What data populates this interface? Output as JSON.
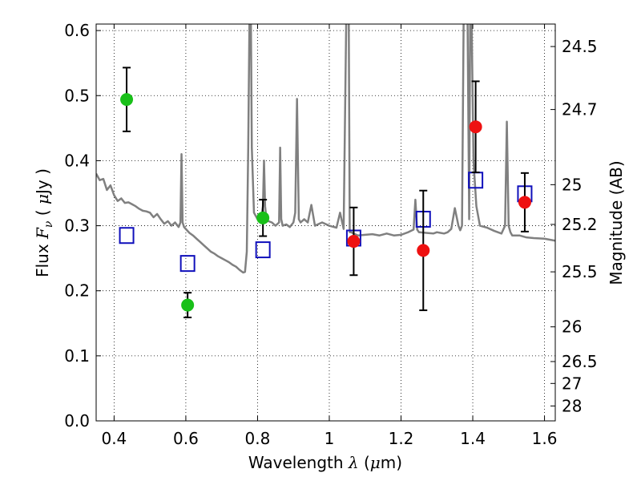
{
  "chart_data": {
    "type": "scatter",
    "xlabel": "Wavelength",
    "xlabel_math": "λ",
    "xlabel_unit_open": "(",
    "xlabel_unit_mu": "μ",
    "xlabel_unit_rest": "m)",
    "ylabel": "Flux",
    "ylabel_math": "F",
    "ylabel_math_sub": "ν",
    "ylabel_unit_open": "(",
    "ylabel_unit_mu": "μ",
    "ylabel_unit_rest": "Jy )",
    "y2label": "Magnitude (AB)",
    "xlim": [
      0.35,
      1.63
    ],
    "ylim": [
      0.0,
      0.61
    ],
    "grid": true,
    "x_ticks": [
      0.4,
      0.6,
      0.8,
      1.0,
      1.2,
      1.4,
      1.6
    ],
    "x_tick_labels": [
      "0.4",
      "0.6",
      "0.8",
      "1",
      "1.2",
      "1.4",
      "1.6"
    ],
    "y_ticks": [
      0.0,
      0.1,
      0.2,
      0.3,
      0.4,
      0.5,
      0.6
    ],
    "y_tick_labels": [
      "0.0",
      "0.1",
      "0.2",
      "0.3",
      "0.4",
      "0.5",
      "0.6"
    ],
    "y2_ticks": [
      24.5,
      24.7,
      25,
      25.2,
      25.5,
      26,
      26.5,
      27,
      28
    ],
    "y2_tick_labels": [
      "24.5",
      "24.7",
      "25",
      "25.2",
      "25.5",
      "26",
      "26.5",
      "27",
      "28"
    ],
    "colors": {
      "model": "#808080",
      "green": "#19c019",
      "red": "#ee1111",
      "blue": "#1010bb",
      "error": "#000000"
    },
    "model_spectrum": {
      "x": [
        0.35,
        0.36,
        0.37,
        0.38,
        0.39,
        0.4,
        0.41,
        0.42,
        0.43,
        0.44,
        0.45,
        0.46,
        0.47,
        0.48,
        0.49,
        0.5,
        0.51,
        0.52,
        0.53,
        0.54,
        0.55,
        0.56,
        0.57,
        0.58,
        0.585,
        0.588,
        0.591,
        0.595,
        0.6,
        0.61,
        0.62,
        0.63,
        0.64,
        0.65,
        0.66,
        0.67,
        0.68,
        0.69,
        0.7,
        0.71,
        0.72,
        0.73,
        0.74,
        0.75,
        0.76,
        0.765,
        0.77,
        0.774,
        0.778,
        0.781,
        0.784,
        0.79,
        0.8,
        0.81,
        0.815,
        0.818,
        0.821,
        0.825,
        0.83,
        0.84,
        0.85,
        0.86,
        0.863,
        0.866,
        0.87,
        0.88,
        0.89,
        0.9,
        0.905,
        0.91,
        0.912,
        0.915,
        0.92,
        0.93,
        0.94,
        0.95,
        0.96,
        0.98,
        1.0,
        1.02,
        1.03,
        1.04,
        1.048,
        1.051,
        1.054,
        1.057,
        1.06,
        1.08,
        1.1,
        1.12,
        1.14,
        1.16,
        1.18,
        1.2,
        1.22,
        1.235,
        1.24,
        1.245,
        1.25,
        1.27,
        1.29,
        1.3,
        1.31,
        1.32,
        1.33,
        1.34,
        1.35,
        1.36,
        1.365,
        1.37,
        1.375,
        1.385,
        1.39,
        1.393,
        1.396,
        1.402,
        1.41,
        1.42,
        1.44,
        1.46,
        1.48,
        1.49,
        1.495,
        1.5,
        1.505,
        1.51,
        1.53,
        1.55,
        1.57,
        1.6,
        1.63
      ],
      "y": [
        0.38,
        0.37,
        0.372,
        0.355,
        0.362,
        0.347,
        0.338,
        0.342,
        0.335,
        0.336,
        0.333,
        0.33,
        0.326,
        0.323,
        0.322,
        0.32,
        0.313,
        0.318,
        0.31,
        0.303,
        0.307,
        0.3,
        0.305,
        0.298,
        0.305,
        0.41,
        0.305,
        0.298,
        0.295,
        0.289,
        0.285,
        0.28,
        0.275,
        0.27,
        0.265,
        0.26,
        0.257,
        0.253,
        0.25,
        0.247,
        0.244,
        0.24,
        0.237,
        0.232,
        0.228,
        0.229,
        0.26,
        0.42,
        0.65,
        0.65,
        0.42,
        0.32,
        0.31,
        0.312,
        0.33,
        0.4,
        0.33,
        0.31,
        0.307,
        0.305,
        0.3,
        0.305,
        0.42,
        0.31,
        0.3,
        0.302,
        0.298,
        0.305,
        0.32,
        0.495,
        0.42,
        0.31,
        0.305,
        0.31,
        0.305,
        0.332,
        0.3,
        0.305,
        0.3,
        0.297,
        0.32,
        0.295,
        0.65,
        0.65,
        0.65,
        0.29,
        0.29,
        0.285,
        0.286,
        0.287,
        0.285,
        0.288,
        0.285,
        0.286,
        0.29,
        0.294,
        0.34,
        0.294,
        0.29,
        0.289,
        0.288,
        0.29,
        0.289,
        0.288,
        0.29,
        0.295,
        0.327,
        0.3,
        0.293,
        0.3,
        0.65,
        0.65,
        0.31,
        0.65,
        0.65,
        0.4,
        0.33,
        0.3,
        0.297,
        0.292,
        0.288,
        0.3,
        0.46,
        0.3,
        0.29,
        0.285,
        0.285,
        0.282,
        0.281,
        0.28,
        0.277
      ]
    },
    "series": [
      {
        "color_key": "green",
        "marker": "circle-filled",
        "points": [
          {
            "x": 0.435,
            "y": 0.494,
            "err": 0.049
          },
          {
            "x": 0.605,
            "y": 0.178,
            "err": 0.019
          },
          {
            "x": 0.815,
            "y": 0.312,
            "err": 0.028
          }
        ]
      },
      {
        "color_key": "red",
        "marker": "circle-filled",
        "points": [
          {
            "x": 1.068,
            "y": 0.276,
            "err": 0.052
          },
          {
            "x": 1.262,
            "y": 0.262,
            "err": 0.092
          },
          {
            "x": 1.408,
            "y": 0.452,
            "err": 0.07
          },
          {
            "x": 1.545,
            "y": 0.336,
            "err": 0.045
          }
        ]
      },
      {
        "color_key": "blue",
        "marker": "square-open",
        "points": [
          {
            "x": 0.435,
            "y": 0.285
          },
          {
            "x": 0.605,
            "y": 0.242
          },
          {
            "x": 0.815,
            "y": 0.263
          },
          {
            "x": 1.068,
            "y": 0.281
          },
          {
            "x": 1.262,
            "y": 0.31
          },
          {
            "x": 1.408,
            "y": 0.37
          },
          {
            "x": 1.545,
            "y": 0.349
          }
        ]
      }
    ]
  }
}
